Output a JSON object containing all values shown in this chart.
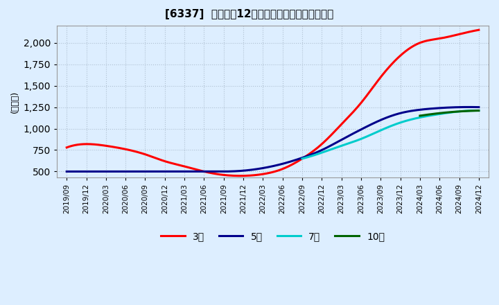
{
  "title": "[6337]  経常利益12か月移動合計の平均値の推移",
  "ylabel": "(百万円)",
  "ylim": [
    430,
    2200
  ],
  "yticks": [
    500,
    750,
    1000,
    1250,
    1500,
    1750,
    2000
  ],
  "background_color": "#ddeeff",
  "plot_bg_color": "#ddeeff",
  "legend_labels": [
    "3年",
    "5年",
    "7年",
    "10年"
  ],
  "legend_colors": [
    "#ff0000",
    "#00008b",
    "#00cccc",
    "#006400"
  ],
  "x_labels": [
    "2019/09",
    "2019/12",
    "2020/03",
    "2020/06",
    "2020/09",
    "2020/12",
    "2021/03",
    "2021/06",
    "2021/09",
    "2021/12",
    "2022/03",
    "2022/06",
    "2022/09",
    "2022/12",
    "2023/03",
    "2023/06",
    "2023/09",
    "2023/12",
    "2024/03",
    "2024/06",
    "2024/09",
    "2024/12"
  ],
  "series": {
    "3yr": [
      780,
      820,
      800,
      760,
      700,
      620,
      560,
      500,
      460,
      450,
      470,
      530,
      650,
      820,
      1050,
      1300,
      1600,
      1850,
      2000,
      2050,
      2100,
      2150
    ],
    "5yr": [
      500,
      500,
      500,
      500,
      500,
      500,
      500,
      500,
      500,
      510,
      540,
      590,
      660,
      750,
      870,
      990,
      1100,
      1180,
      1220,
      1240,
      1250,
      1250
    ],
    "7yr": [
      null,
      null,
      null,
      null,
      null,
      null,
      null,
      null,
      null,
      null,
      null,
      null,
      650,
      720,
      800,
      880,
      980,
      1070,
      1130,
      1170,
      1200,
      1210
    ],
    "10yr": [
      null,
      null,
      null,
      null,
      null,
      null,
      null,
      null,
      null,
      null,
      null,
      null,
      null,
      null,
      null,
      null,
      null,
      null,
      null,
      null,
      null,
      null
    ]
  }
}
